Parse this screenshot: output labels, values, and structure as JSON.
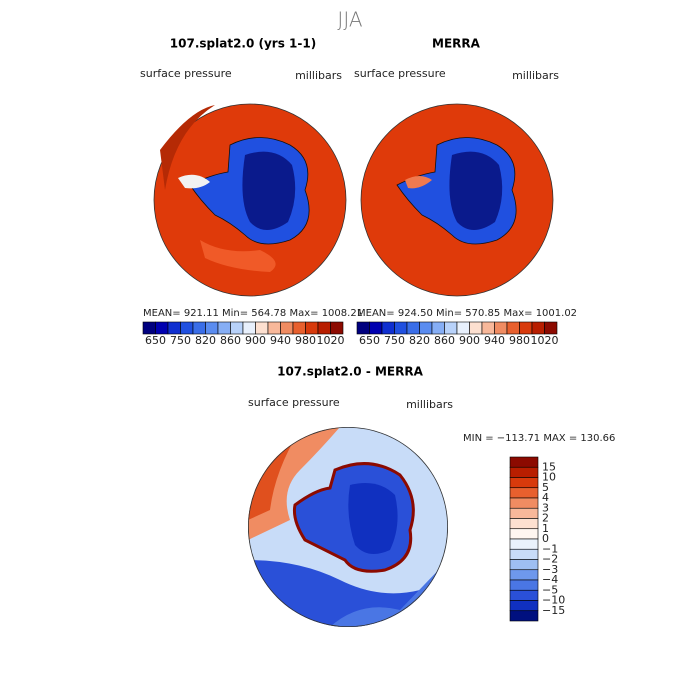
{
  "title": "JJA",
  "panels": [
    {
      "title": "107.splat2.0 (yrs 1-1)",
      "variable": "surface pressure",
      "units": "millibars",
      "stats": "MEAN= 921.11  Min= 564.78  Max= 1008.21"
    },
    {
      "title": "MERRA",
      "variable": "surface pressure",
      "units": "millibars",
      "stats": "MEAN= 924.50  Min= 570.85  Max= 1001.02"
    }
  ],
  "colorbar": {
    "labels": [
      "650",
      "750",
      "820",
      "860",
      "900",
      "940",
      "980",
      "1020"
    ],
    "colors": [
      "#00007f",
      "#0000b0",
      "#0f2fd0",
      "#2050e0",
      "#3a6ee8",
      "#5a8cf0",
      "#86aef5",
      "#b8d2fa",
      "#e8f0fc",
      "#fde0d0",
      "#f8b89a",
      "#f08c62",
      "#e8602e",
      "#d83a0c",
      "#b81e00",
      "#8c0a00"
    ]
  },
  "difference": {
    "title": "107.splat2.0 - MERRA",
    "variable": "surface pressure",
    "units": "millibars",
    "stats": "MIN = −113.71  MAX = 130.66",
    "colorbar": {
      "labels": [
        "15",
        "10",
        "5",
        "4",
        "3",
        "2",
        "1",
        "0",
        "−1",
        "−2",
        "−3",
        "−4",
        "−5",
        "−10",
        "−15"
      ],
      "colors": [
        "#8c0a00",
        "#b81e00",
        "#d83a0c",
        "#e8602e",
        "#f08c62",
        "#f8b89a",
        "#fde0d0",
        "#fff6f0",
        "#eaf2fc",
        "#c8dcf8",
        "#9ebff2",
        "#6e98ec",
        "#4a76e4",
        "#2a50d8",
        "#1030c0",
        "#00107f"
      ]
    }
  }
}
